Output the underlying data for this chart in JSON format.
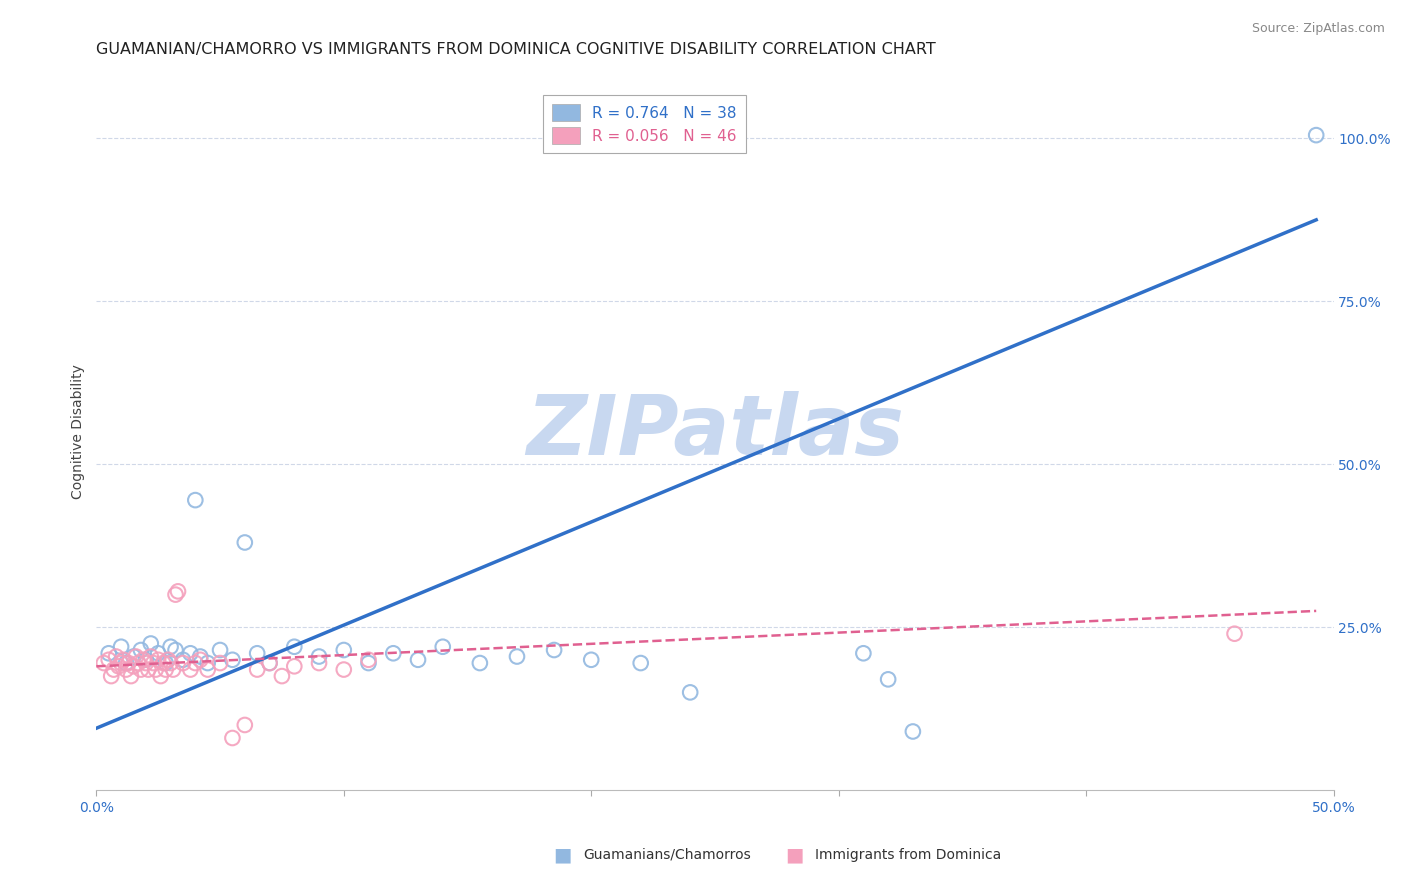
{
  "title": "GUAMANIAN/CHAMORRO VS IMMIGRANTS FROM DOMINICA COGNITIVE DISABILITY CORRELATION CHART",
  "source": "Source: ZipAtlas.com",
  "ylabel_label": "Cognitive Disability",
  "xlim": [
    0.0,
    0.5
  ],
  "ylim": [
    0.0,
    1.1
  ],
  "xticks": [
    0.0,
    0.1,
    0.2,
    0.3,
    0.4,
    0.5
  ],
  "xtick_labels": [
    "0.0%",
    "",
    "",
    "",
    "",
    "50.0%"
  ],
  "ytick_vals": [
    0.25,
    0.5,
    0.75,
    1.0
  ],
  "ytick_labels": [
    "25.0%",
    "50.0%",
    "75.0%",
    "100.0%"
  ],
  "watermark": "ZIPatlas",
  "blue_scatter_x": [
    0.005,
    0.01,
    0.012,
    0.015,
    0.018,
    0.02,
    0.022,
    0.025,
    0.028,
    0.03,
    0.032,
    0.035,
    0.038,
    0.04,
    0.042,
    0.045,
    0.05,
    0.055,
    0.06,
    0.065,
    0.07,
    0.08,
    0.09,
    0.1,
    0.11,
    0.12,
    0.13,
    0.14,
    0.155,
    0.17,
    0.185,
    0.2,
    0.22,
    0.24,
    0.31,
    0.32,
    0.33,
    0.493
  ],
  "blue_scatter_y": [
    0.21,
    0.22,
    0.195,
    0.205,
    0.215,
    0.2,
    0.225,
    0.21,
    0.195,
    0.22,
    0.215,
    0.2,
    0.21,
    0.445,
    0.205,
    0.195,
    0.215,
    0.2,
    0.38,
    0.21,
    0.195,
    0.22,
    0.205,
    0.215,
    0.195,
    0.21,
    0.2,
    0.22,
    0.195,
    0.205,
    0.215,
    0.2,
    0.195,
    0.15,
    0.21,
    0.17,
    0.09,
    1.005
  ],
  "pink_scatter_x": [
    0.003,
    0.005,
    0.006,
    0.007,
    0.008,
    0.009,
    0.01,
    0.011,
    0.012,
    0.013,
    0.014,
    0.015,
    0.016,
    0.017,
    0.018,
    0.019,
    0.02,
    0.021,
    0.022,
    0.023,
    0.024,
    0.025,
    0.026,
    0.027,
    0.028,
    0.029,
    0.03,
    0.031,
    0.032,
    0.033,
    0.035,
    0.038,
    0.04,
    0.042,
    0.045,
    0.05,
    0.055,
    0.06,
    0.065,
    0.07,
    0.075,
    0.08,
    0.09,
    0.1,
    0.11,
    0.46
  ],
  "pink_scatter_y": [
    0.195,
    0.2,
    0.175,
    0.185,
    0.205,
    0.19,
    0.195,
    0.2,
    0.185,
    0.195,
    0.175,
    0.19,
    0.205,
    0.195,
    0.185,
    0.2,
    0.195,
    0.185,
    0.205,
    0.195,
    0.185,
    0.2,
    0.175,
    0.195,
    0.185,
    0.2,
    0.195,
    0.185,
    0.3,
    0.305,
    0.195,
    0.185,
    0.195,
    0.2,
    0.185,
    0.195,
    0.08,
    0.1,
    0.185,
    0.195,
    0.175,
    0.19,
    0.195,
    0.185,
    0.2,
    0.24
  ],
  "blue_line_x": [
    0.0,
    0.493
  ],
  "blue_line_y": [
    0.095,
    0.875
  ],
  "pink_line_x": [
    0.0,
    0.493
  ],
  "pink_line_y": [
    0.19,
    0.275
  ],
  "blue_color": "#92b8e0",
  "pink_color": "#f4a0bc",
  "blue_line_color": "#3070c8",
  "pink_line_color": "#e06090",
  "grid_color": "#d0d8e8",
  "background_color": "#ffffff",
  "title_fontsize": 11.5,
  "axis_label_fontsize": 10,
  "tick_fontsize": 10,
  "watermark_color": "#c8d8f0",
  "watermark_fontsize": 60,
  "legend_R1": "R = 0.764",
  "legend_N1": "N = 38",
  "legend_R2": "R = 0.056",
  "legend_N2": "N = 46"
}
